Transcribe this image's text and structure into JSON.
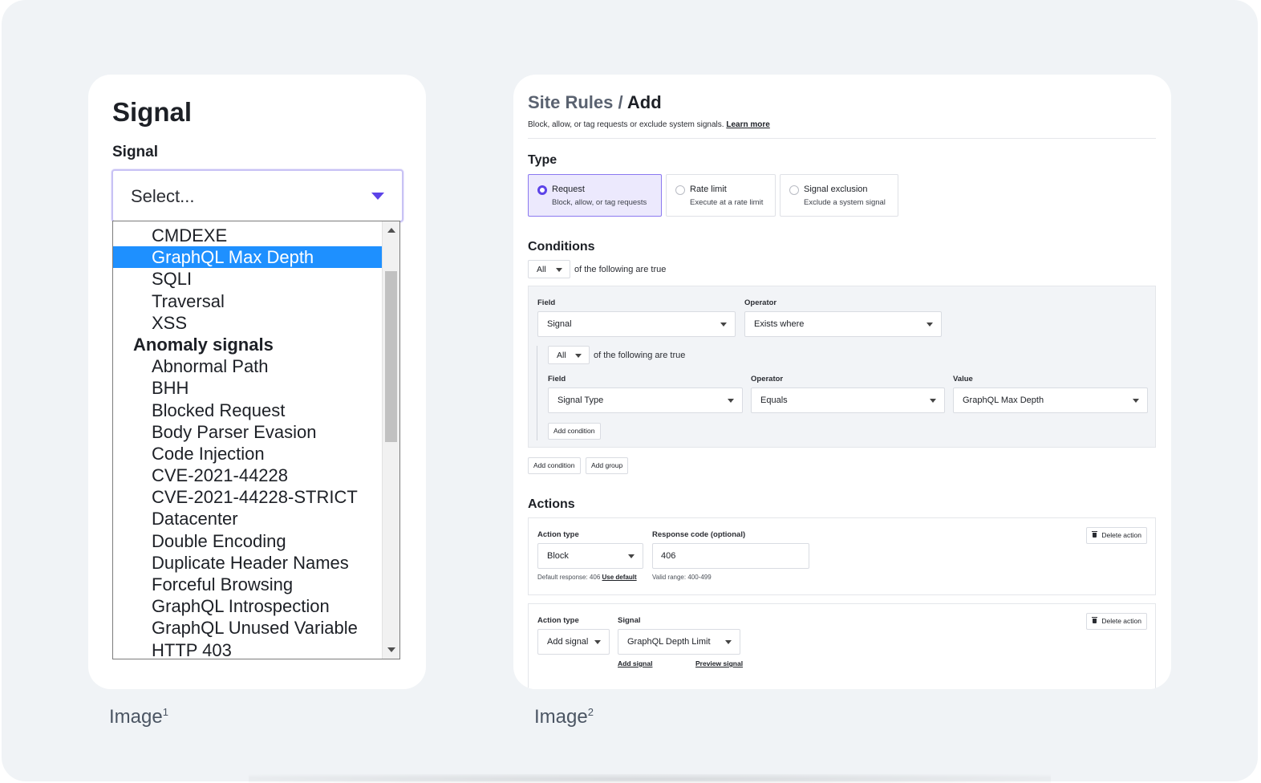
{
  "image1": {
    "heading": "Signal",
    "field_label": "Signal",
    "select_placeholder": "Select...",
    "options": [
      {
        "label": "CMDEXE",
        "kind": "option",
        "selected": false
      },
      {
        "label": "GraphQL Max Depth",
        "kind": "option",
        "selected": true
      },
      {
        "label": "SQLI",
        "kind": "option",
        "selected": false
      },
      {
        "label": "Traversal",
        "kind": "option",
        "selected": false
      },
      {
        "label": "XSS",
        "kind": "option",
        "selected": false
      },
      {
        "label": "Anomaly signals",
        "kind": "group",
        "selected": false
      },
      {
        "label": "Abnormal Path",
        "kind": "option",
        "selected": false
      },
      {
        "label": "BHH",
        "kind": "option",
        "selected": false
      },
      {
        "label": "Blocked Request",
        "kind": "option",
        "selected": false
      },
      {
        "label": "Body Parser Evasion",
        "kind": "option",
        "selected": false
      },
      {
        "label": "Code Injection",
        "kind": "option",
        "selected": false
      },
      {
        "label": "CVE-2021-44228",
        "kind": "option",
        "selected": false
      },
      {
        "label": "CVE-2021-44228-STRICT",
        "kind": "option",
        "selected": false
      },
      {
        "label": "Datacenter",
        "kind": "option",
        "selected": false
      },
      {
        "label": "Double Encoding",
        "kind": "option",
        "selected": false
      },
      {
        "label": "Duplicate Header Names",
        "kind": "option",
        "selected": false
      },
      {
        "label": "Forceful Browsing",
        "kind": "option",
        "selected": false
      },
      {
        "label": "GraphQL Introspection",
        "kind": "option",
        "selected": false
      },
      {
        "label": "GraphQL Unused Variable",
        "kind": "option",
        "selected": false
      },
      {
        "label": "HTTP 403",
        "kind": "option",
        "selected": false
      }
    ],
    "caption": "Image",
    "caption_sup": "1"
  },
  "image2": {
    "breadcrumb_parent": "Site Rules",
    "breadcrumb_sep": " / ",
    "breadcrumb_current": "Add",
    "subtitle": "Block, allow, or tag requests or exclude system signals.",
    "learn_more": "Learn more",
    "type": {
      "heading": "Type",
      "options": [
        {
          "label": "Request",
          "desc": "Block, allow, or tag requests",
          "selected": true
        },
        {
          "label": "Rate limit",
          "desc": "Execute at a rate limit",
          "selected": false
        },
        {
          "label": "Signal exclusion",
          "desc": "Exclude a system signal",
          "selected": false
        }
      ]
    },
    "conditions": {
      "heading": "Conditions",
      "match_value": "All",
      "match_text": "of the following are true",
      "field_label": "Field",
      "field_value": "Signal",
      "operator_label": "Operator",
      "operator_value": "Exists where",
      "nested": {
        "match_value": "All",
        "match_text": "of the following are true",
        "field_label": "Field",
        "field_value": "Signal Type",
        "operator_label": "Operator",
        "operator_value": "Equals",
        "value_label": "Value",
        "value_value": "GraphQL Max Depth",
        "add_condition": "Add condition"
      },
      "add_condition": "Add condition",
      "add_group": "Add group"
    },
    "actions": {
      "heading": "Actions",
      "items": [
        {
          "action_type_label": "Action type",
          "action_type_value": "Block",
          "response_label": "Response code (optional)",
          "response_value": "406",
          "default_hint": "Default response: 406",
          "use_default": "Use default",
          "range_hint": "Valid range: 400-499",
          "delete": "Delete action"
        },
        {
          "action_type_label": "Action type",
          "action_type_value": "Add signal",
          "signal_label": "Signal",
          "signal_value": "GraphQL Depth Limit",
          "add_signal": "Add signal",
          "preview_signal": "Preview signal",
          "delete": "Delete action"
        }
      ]
    },
    "caption": "Image",
    "caption_sup": "2"
  }
}
